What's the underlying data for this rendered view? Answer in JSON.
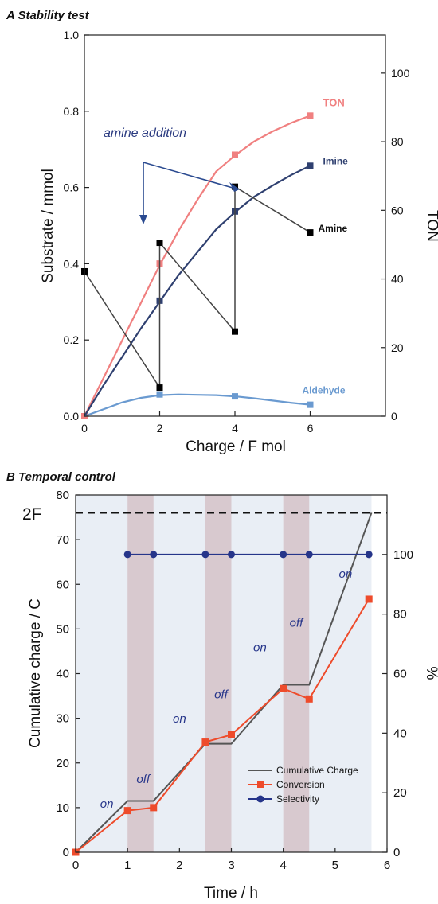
{
  "chart_data": [
    {
      "panel": "A",
      "type": "line",
      "title": "A Stability test",
      "xlabel": "Charge / F mol",
      "ylabel": "Substrate / mmol",
      "y2label": "TON",
      "xlim": [
        0,
        8
      ],
      "ylim": [
        0,
        1.0
      ],
      "y2lim": [
        0,
        111.1
      ],
      "xticks": [
        "0",
        "2",
        "4",
        "6"
      ],
      "yticks": [
        "0.0",
        "0.2",
        "0.4",
        "0.6",
        "0.8",
        "1.0"
      ],
      "y2ticks": [
        "0",
        "20",
        "40",
        "60",
        "80",
        "100"
      ],
      "annotation": "amine addition",
      "series": [
        {
          "name": "TON",
          "axis": "right",
          "color": "#f08080",
          "line": [
            [
              0,
              0
            ],
            [
              0.5,
              11
            ],
            [
              1,
              22
            ],
            [
              1.5,
              33
            ],
            [
              2,
              44
            ],
            [
              2.5,
              54
            ],
            [
              3,
              63
            ],
            [
              3.5,
              71.3
            ],
            [
              4,
              76
            ],
            [
              4.5,
              80
            ],
            [
              5,
              83
            ],
            [
              5.5,
              85.5
            ],
            [
              6,
              87.6
            ]
          ],
          "markers": [
            [
              0,
              0
            ],
            [
              2,
              44.5
            ],
            [
              4,
              76.2
            ],
            [
              6,
              87.6
            ]
          ]
        },
        {
          "name": "Imine",
          "axis": "left",
          "color": "#2f4070",
          "line": [
            [
              0,
              0
            ],
            [
              0.5,
              0.08
            ],
            [
              1,
              0.155
            ],
            [
              1.5,
              0.23
            ],
            [
              2,
              0.3
            ],
            [
              2.5,
              0.37
            ],
            [
              3,
              0.43
            ],
            [
              3.5,
              0.49
            ],
            [
              4,
              0.535
            ],
            [
              4.5,
              0.575
            ],
            [
              5,
              0.605
            ],
            [
              5.5,
              0.633
            ],
            [
              6,
              0.657
            ]
          ],
          "markers": [
            [
              2,
              0.303
            ],
            [
              4,
              0.537
            ],
            [
              6,
              0.657
            ]
          ]
        },
        {
          "name": "Amine",
          "axis": "left",
          "color": "#444444",
          "line": [
            [
              0,
              0.38
            ],
            [
              2,
              0.075
            ],
            [
              2,
              0.455
            ],
            [
              4,
              0.222
            ],
            [
              4,
              0.602
            ],
            [
              6,
              0.482
            ]
          ],
          "markers": [
            [
              0,
              0.38
            ],
            [
              2,
              0.075
            ],
            [
              2,
              0.455
            ],
            [
              4,
              0.222
            ],
            [
              4,
              0.602
            ],
            [
              6,
              0.482
            ]
          ]
        },
        {
          "name": "Aldehyde",
          "axis": "left",
          "color": "#6a9ad0",
          "line": [
            [
              0,
              0
            ],
            [
              0.5,
              0.018
            ],
            [
              1,
              0.036
            ],
            [
              1.5,
              0.048
            ],
            [
              2,
              0.055
            ],
            [
              2.5,
              0.057
            ],
            [
              3,
              0.056
            ],
            [
              3.5,
              0.055
            ],
            [
              4,
              0.052
            ],
            [
              4.5,
              0.047
            ],
            [
              5,
              0.041
            ],
            [
              5.5,
              0.035
            ],
            [
              6,
              0.03
            ]
          ],
          "markers": [
            [
              2,
              0.057
            ],
            [
              4,
              0.052
            ],
            [
              6,
              0.03
            ]
          ]
        }
      ]
    },
    {
      "panel": "B",
      "type": "line",
      "title": "B Temporal control",
      "xlabel": "Time / h",
      "ylabel": "Cumulative charge / C",
      "y2label": "%",
      "xlim": [
        0,
        6
      ],
      "ylim": [
        0,
        80
      ],
      "y2lim": [
        0,
        120
      ],
      "xticks": [
        "0",
        "1",
        "2",
        "3",
        "4",
        "5",
        "6"
      ],
      "yticks": [
        "0",
        "10",
        "20",
        "30",
        "40",
        "50",
        "60",
        "70",
        "80"
      ],
      "y2ticks": [
        "0",
        "20",
        "40",
        "60",
        "80",
        "100"
      ],
      "reference_line": {
        "label": "2F",
        "y": 76
      },
      "off_intervals": [
        [
          1,
          1.5
        ],
        [
          2.5,
          3
        ],
        [
          4,
          4.5
        ]
      ],
      "phase_labels": [
        {
          "text": "on",
          "x": 0.6,
          "y": 10
        },
        {
          "text": "off",
          "x": 1.3,
          "y": 15.5
        },
        {
          "text": "on",
          "x": 2.0,
          "y": 29
        },
        {
          "text": "off",
          "x": 2.8,
          "y": 34.5
        },
        {
          "text": "on",
          "x": 3.55,
          "y": 45
        },
        {
          "text": "off",
          "x": 4.25,
          "y": 50.5
        },
        {
          "text": "on",
          "x": 5.2,
          "y": 61.5
        }
      ],
      "series": [
        {
          "name": "Cumulative Charge",
          "axis": "left",
          "color": "#555555",
          "marker": "none",
          "x": [
            0,
            1,
            1.5,
            2.5,
            3,
            4,
            4.5,
            5.7
          ],
          "values": [
            0,
            11.5,
            11.5,
            24.3,
            24.3,
            37.5,
            37.5,
            76
          ]
        },
        {
          "name": "Conversion",
          "axis": "right",
          "color": "#ee4b2b",
          "marker": "square",
          "x": [
            0,
            1,
            1.5,
            2.5,
            3,
            4,
            4.5,
            5.65
          ],
          "values": [
            0,
            14,
            15,
            37,
            39.5,
            55,
            51.5,
            85
          ]
        },
        {
          "name": "Selectivity",
          "axis": "right",
          "color": "#26358a",
          "marker": "circle",
          "x": [
            1,
            1.5,
            2.5,
            3,
            4,
            4.5,
            5.65
          ],
          "values": [
            100,
            100,
            100,
            100,
            100,
            100,
            100
          ]
        }
      ]
    }
  ]
}
